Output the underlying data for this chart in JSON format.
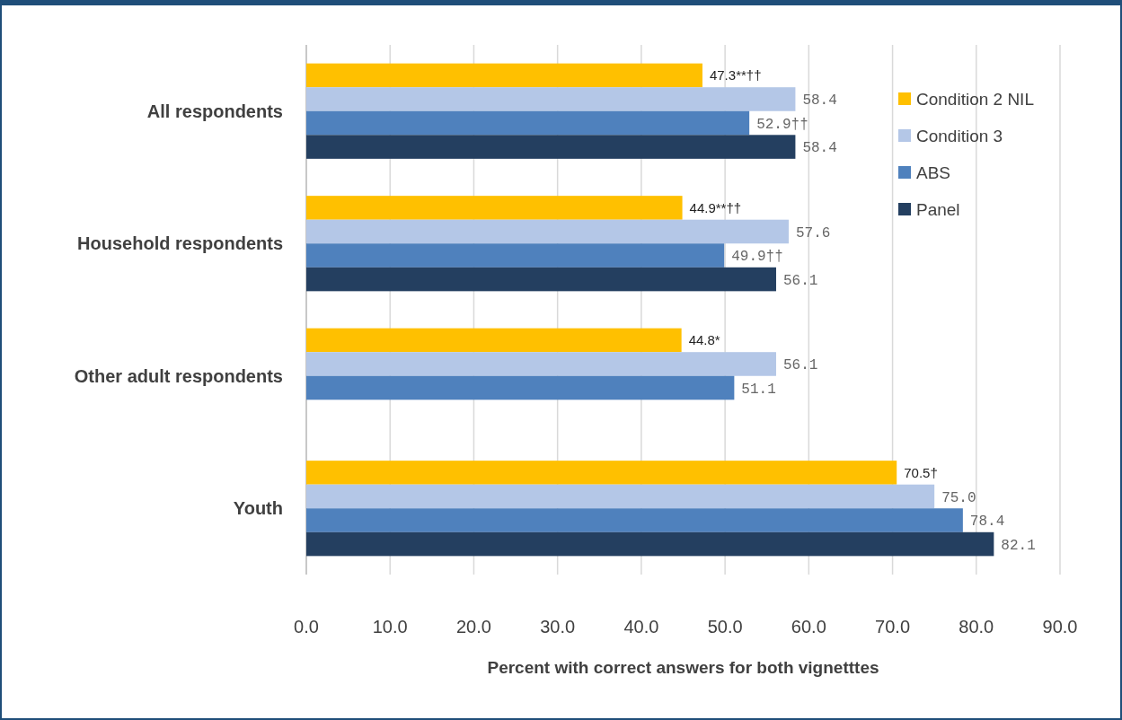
{
  "chart_data": {
    "type": "bar",
    "orientation": "horizontal",
    "xlabel": "Percent with correct answers for both vignetttes",
    "categories": [
      "All respondents",
      "Household respondents",
      "Other adult respondents",
      "Youth"
    ],
    "series": [
      {
        "name": "Condition 2 NIL",
        "color": "#ffc000",
        "values": [
          47.3,
          44.9,
          44.8,
          70.5
        ],
        "value_labels": [
          "47.3**††",
          "44.9**††",
          "44.8*",
          "70.5†"
        ]
      },
      {
        "name": "Condition 3",
        "color": "#b4c7e7",
        "values": [
          58.4,
          57.6,
          56.1,
          75.0
        ],
        "value_labels": [
          "58.4",
          "57.6",
          "56.1",
          "75.0"
        ]
      },
      {
        "name": "ABS",
        "color": "#4f81bd",
        "values": [
          52.9,
          49.9,
          51.1,
          78.4
        ],
        "value_labels": [
          "52.9††",
          "49.9††",
          "51.1",
          "78.4"
        ]
      },
      {
        "name": "Panel",
        "color": "#243f60",
        "values": [
          58.4,
          56.1,
          null,
          82.1
        ],
        "value_labels": [
          "58.4",
          "56.1",
          null,
          "82.1"
        ]
      }
    ],
    "xlim": [
      0,
      90
    ],
    "xticks": [
      {
        "value": 0,
        "label": "0.0"
      },
      {
        "value": 10,
        "label": "10.0"
      },
      {
        "value": 20,
        "label": "20.0"
      },
      {
        "value": 30,
        "label": "30.0"
      },
      {
        "value": 40,
        "label": "40.0"
      },
      {
        "value": 50,
        "label": "50.0"
      },
      {
        "value": 60,
        "label": "60.0"
      },
      {
        "value": 70,
        "label": "70.0"
      },
      {
        "value": 80,
        "label": "80.0"
      },
      {
        "value": 90,
        "label": "90.0"
      }
    ],
    "grid": "x",
    "legend": "top right"
  }
}
